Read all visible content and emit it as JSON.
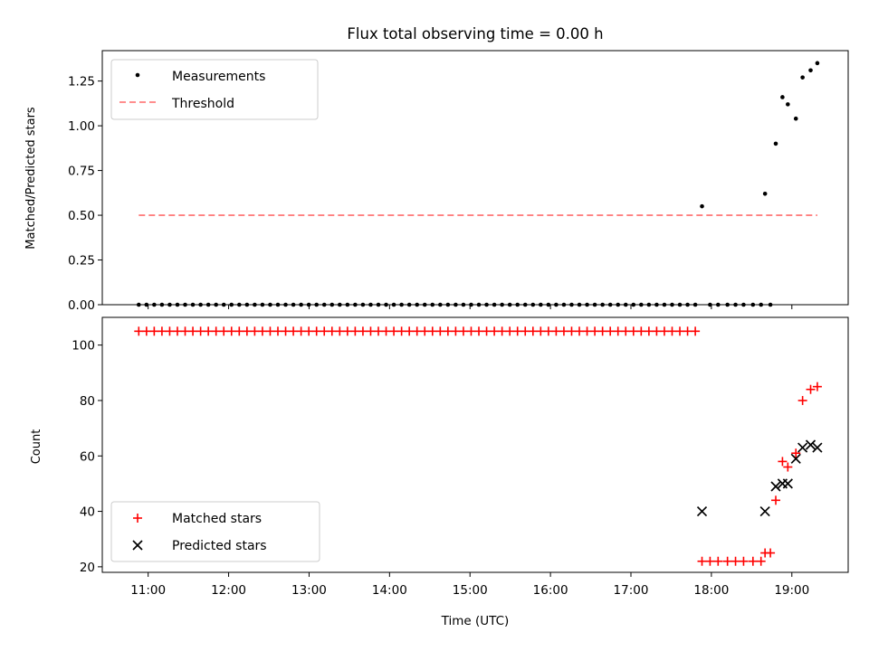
{
  "chart_data": [
    {
      "type": "scatter",
      "title": "Flux total observing time = 0.00 h",
      "xlabel": "",
      "ylabel": "Matched/Predicted stars",
      "ylim": [
        0,
        1.42
      ],
      "yticks": [
        0.0,
        0.25,
        0.5,
        0.75,
        1.0,
        1.25
      ],
      "ytick_labels": [
        "0.00",
        "0.25",
        "0.50",
        "0.75",
        "1.00",
        "1.25"
      ],
      "xlim_hours": [
        10.43,
        19.7
      ],
      "xticks": [
        "11:00",
        "12:00",
        "13:00",
        "14:00",
        "15:00",
        "16:00",
        "17:00",
        "18:00",
        "19:00"
      ],
      "grid": false,
      "legend": "upper left",
      "legend_entries": [
        "Measurements",
        "Threshold"
      ],
      "series": [
        {
          "name": "Measurements",
          "color": "#000000",
          "marker": "dot",
          "x_start": "10:53",
          "x_end": "17:48",
          "count": 73,
          "value": 0.0,
          "late_points": [
            {
              "x": "17:53",
              "y": 0.55
            },
            {
              "x": "17:59",
              "y": 0.0
            },
            {
              "x": "18:05",
              "y": 0.0
            },
            {
              "x": "18:12",
              "y": 0.0
            },
            {
              "x": "18:18",
              "y": 0.0
            },
            {
              "x": "18:24",
              "y": 0.0
            },
            {
              "x": "18:31",
              "y": 0.0
            },
            {
              "x": "18:37",
              "y": 0.0
            },
            {
              "x": "18:40",
              "y": 0.62
            },
            {
              "x": "18:44",
              "y": 0.0
            },
            {
              "x": "18:48",
              "y": 0.9
            },
            {
              "x": "18:53",
              "y": 1.16
            },
            {
              "x": "18:57",
              "y": 1.12
            },
            {
              "x": "19:03",
              "y": 1.04
            },
            {
              "x": "19:08",
              "y": 1.27
            },
            {
              "x": "19:14",
              "y": 1.31
            },
            {
              "x": "19:19",
              "y": 1.35
            }
          ]
        },
        {
          "name": "Threshold",
          "color": "#ff7f7f",
          "style": "dashed",
          "x_start": "10:53",
          "x_end": "19:19",
          "value": 0.5
        }
      ]
    },
    {
      "type": "scatter",
      "title": "",
      "xlabel": "Time (UTC)",
      "ylabel": "Count",
      "ylim": [
        18,
        110
      ],
      "yticks": [
        20,
        40,
        60,
        80,
        100
      ],
      "ytick_labels": [
        "20",
        "40",
        "60",
        "80",
        "100"
      ],
      "xlim_hours": [
        10.43,
        19.7
      ],
      "xticks": [
        "11:00",
        "12:00",
        "13:00",
        "14:00",
        "15:00",
        "16:00",
        "17:00",
        "18:00",
        "19:00"
      ],
      "grid": false,
      "legend": "lower left",
      "legend_entries": [
        "Matched stars",
        "Predicted stars"
      ],
      "series": [
        {
          "name": "Matched stars",
          "color": "#ff0000",
          "marker": "plus",
          "x_start": "10:53",
          "x_end": "17:48",
          "count": 73,
          "value": 105,
          "late_points": [
            {
              "x": "17:53",
              "y": 22
            },
            {
              "x": "17:59",
              "y": 22
            },
            {
              "x": "18:05",
              "y": 22
            },
            {
              "x": "18:12",
              "y": 22
            },
            {
              "x": "18:18",
              "y": 22
            },
            {
              "x": "18:24",
              "y": 22
            },
            {
              "x": "18:31",
              "y": 22
            },
            {
              "x": "18:37",
              "y": 22
            },
            {
              "x": "18:40",
              "y": 25
            },
            {
              "x": "18:44",
              "y": 25
            },
            {
              "x": "18:48",
              "y": 44
            },
            {
              "x": "18:53",
              "y": 58
            },
            {
              "x": "18:57",
              "y": 56
            },
            {
              "x": "19:03",
              "y": 61
            },
            {
              "x": "19:08",
              "y": 80
            },
            {
              "x": "19:14",
              "y": 84
            },
            {
              "x": "19:19",
              "y": 85
            }
          ]
        },
        {
          "name": "Predicted stars",
          "color": "#000000",
          "marker": "x",
          "points": [
            {
              "x": "17:53",
              "y": 40
            },
            {
              "x": "18:40",
              "y": 40
            },
            {
              "x": "18:48",
              "y": 49
            },
            {
              "x": "18:53",
              "y": 50
            },
            {
              "x": "18:57",
              "y": 50
            },
            {
              "x": "19:03",
              "y": 59
            },
            {
              "x": "19:08",
              "y": 63
            },
            {
              "x": "19:14",
              "y": 64
            },
            {
              "x": "19:19",
              "y": 63
            }
          ]
        }
      ]
    }
  ]
}
